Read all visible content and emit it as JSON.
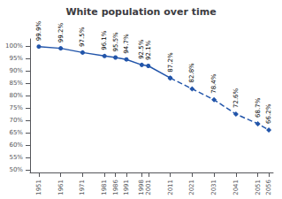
{
  "chart_data": {
    "type": "line",
    "title": "White population over time",
    "x": [
      1951,
      1961,
      1971,
      1981,
      1986,
      1991,
      1998,
      2001,
      2011,
      2021,
      2031,
      2041,
      2051,
      2056
    ],
    "series": [
      {
        "color": "#2255aa",
        "line_style": "solid",
        "marker": "circle",
        "values": [
          99.9,
          99.2,
          97.5,
          96.1,
          95.5,
          94.7,
          92.5,
          92.1,
          87.2,
          null,
          null,
          null,
          null,
          null
        ],
        "value_labels": [
          "99.9%",
          "99.2%",
          "97.5%",
          "96.1%",
          "95.5%",
          "94.7%",
          "92.5%",
          "92.1%",
          "87.2%",
          null,
          null,
          null,
          null,
          null
        ]
      },
      {
        "color": "#2255aa",
        "line_style": "dashed",
        "marker": "diamond",
        "values": [
          null,
          null,
          null,
          null,
          null,
          null,
          null,
          null,
          87.2,
          82.8,
          78.4,
          72.6,
          68.7,
          66.2
        ],
        "value_labels": [
          null,
          null,
          null,
          null,
          null,
          null,
          null,
          null,
          null,
          "82.8%",
          "78.4%",
          "72.6%",
          "68.7%",
          "66.2%"
        ]
      }
    ],
    "xlim": [
      1947,
      2058
    ],
    "xticks": [
      1951,
      1961,
      1971,
      1981,
      1986,
      1991,
      1998,
      2001,
      2011,
      2021,
      2031,
      2041,
      2051,
      2056
    ],
    "ylim": [
      49,
      103
    ],
    "yticks": [
      {
        "value": 50,
        "label": "50%"
      },
      {
        "value": 55,
        "label": "55%"
      },
      {
        "value": 60,
        "label": "60%"
      },
      {
        "value": 65,
        "label": "65%"
      },
      {
        "value": 70,
        "label": "70%"
      },
      {
        "value": 75,
        "label": "75%"
      },
      {
        "value": 80,
        "label": "80%"
      },
      {
        "value": 85,
        "label": "85%"
      },
      {
        "value": 90,
        "label": "90%"
      },
      {
        "value": 95,
        "label": "95%"
      },
      {
        "value": 100,
        "label": "100%"
      }
    ],
    "grid": false,
    "data_labels": true
  }
}
